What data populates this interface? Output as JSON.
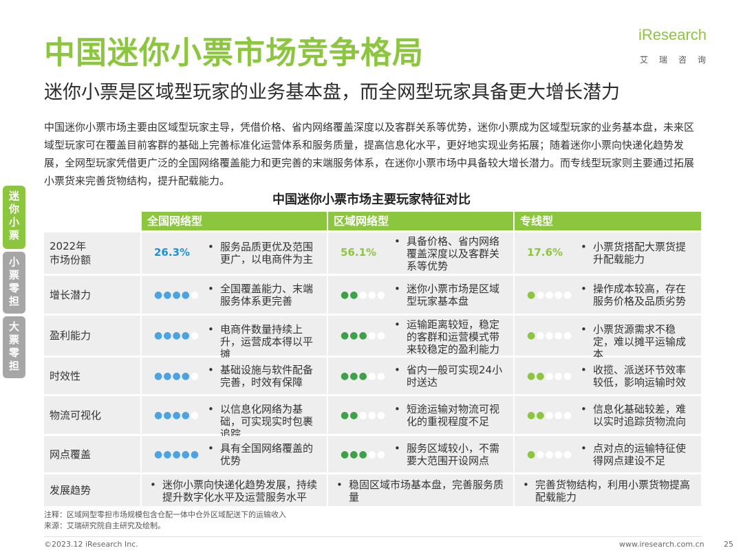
{
  "title": "中国迷你小票市场竞争格局",
  "subtitle": "迷你小票是区域型玩家的业务基本盘，而全网型玩家具备更大增长潜力",
  "logo": {
    "brand": "iResearch",
    "sub": "艾瑞咨询"
  },
  "intro": "中国迷你小票市场主要由区域型玩家主导，凭借价格、省内网络覆盖深度以及客群关系等优势，迷你小票成为区域型玩家的业务基本盘，未来区域型玩家可在覆盖目前客群的基础上完善标准化运营体系和服务质量，提高信息化水平，更好地实现业务拓展；随着迷你小票向快递化趋势发展，全网型玩家凭借更广泛的全国网络覆盖能力和更完善的末端服务体系，在迷你小票市场中具备较大增长潜力。而专线型玩家则主要通过拓展小票货来完善货物结构，提升配载能力。",
  "side_tabs": [
    "迷你小票",
    "小票零担",
    "大票零担"
  ],
  "table_title": "中国迷你小票市场主要玩家特征对比",
  "columns": [
    "全国网络型",
    "区域网络型",
    "专线型"
  ],
  "colors": {
    "accent": "#8cc63f",
    "dot": "#4ca3e0",
    "row": "#eeeeee",
    "tab_inactive": "#a6a6a6"
  },
  "rows": [
    {
      "label": "2022年\n市场份额",
      "cells": [
        {
          "pct": "26.3%",
          "pct_color": "#1e90d8",
          "desc": "服务品质更优及范围更广，以电商件为主"
        },
        {
          "pct": "56.1%",
          "pct_color": "#8cc63f",
          "desc": "具备价格、省内网络覆盖深度以及客群关系等优势"
        },
        {
          "pct": "17.6%",
          "pct_color": "#8cc63f",
          "desc": "小票货搭配大票货提升配载能力"
        }
      ]
    },
    {
      "label": "增长潜力",
      "cells": [
        {
          "level": 4,
          "color": "#4ca3e0",
          "desc": "全国覆盖能力、末端服务体系更完善"
        },
        {
          "level": 2,
          "color": "#3fa04a",
          "desc": "迷你小票市场是区域型玩家基本盘"
        },
        {
          "level": 1,
          "color": "#8cc63f",
          "desc": "操作成本较高，存在服务价格及品质劣势"
        }
      ]
    },
    {
      "label": "盈利能力",
      "cells": [
        {
          "level": 4,
          "color": "#4ca3e0",
          "desc": "电商件数量持续上升，运营成本得以平摊"
        },
        {
          "level": 3,
          "color": "#3fa04a",
          "desc": "运输距离较短，稳定的客群和运营模式带来较稳定的盈利能力"
        },
        {
          "level": 1,
          "color": "#8cc63f",
          "desc": "小票货源需求不稳定，难以摊平运输成本"
        }
      ]
    },
    {
      "label": "时效性",
      "cells": [
        {
          "level": 4,
          "color": "#4ca3e0",
          "desc": "基础设施与软件配备完善，时效有保障"
        },
        {
          "level": 3,
          "color": "#3fa04a",
          "desc": "省内一般可实现24小时送达"
        },
        {
          "level": 2,
          "color": "#8cc63f",
          "desc": "收揽、派送环节效率较低，影响运输时效"
        }
      ]
    },
    {
      "label": "物流可视化",
      "cells": [
        {
          "level": 4,
          "color": "#4ca3e0",
          "desc": "以信息化网络为基础，可实现实时包裹追踪"
        },
        {
          "level": 2,
          "color": "#3fa04a",
          "desc": "短途运输对物流可视化的重视程度不足"
        },
        {
          "level": 2,
          "color": "#8cc63f",
          "desc": "信息化基础较差，难以实时追踪货物流向"
        }
      ]
    },
    {
      "label": "网点覆盖",
      "cells": [
        {
          "level": 5,
          "color": "#4ca3e0",
          "desc": "具有全国网络覆盖的优势"
        },
        {
          "level": 3,
          "color": "#3fa04a",
          "desc": "服务区域较小，不需要大范围开设网点"
        },
        {
          "level": 1,
          "color": "#8cc63f",
          "desc": "点对点的运输特征使得网点建设不足"
        }
      ]
    },
    {
      "label": "发展趋势",
      "trend": [
        "迷你小票向快递化趋势发展，持续提升数字化水平及运营服务水平",
        "稳固区域市场基本盘，完善服务质量",
        "完善货物结构，利用小票货物提高配载能力"
      ]
    }
  ],
  "notes": [
    "注释：区域网型零担市场规模包含仓配一体中仓外区域配送下的运输收入",
    "来源：艾瑞研究院自主研究及绘制。"
  ],
  "footer": {
    "copyright": "©2023.12 iResearch Inc.",
    "website": "www.iresearch.com.cn",
    "page": "25"
  }
}
